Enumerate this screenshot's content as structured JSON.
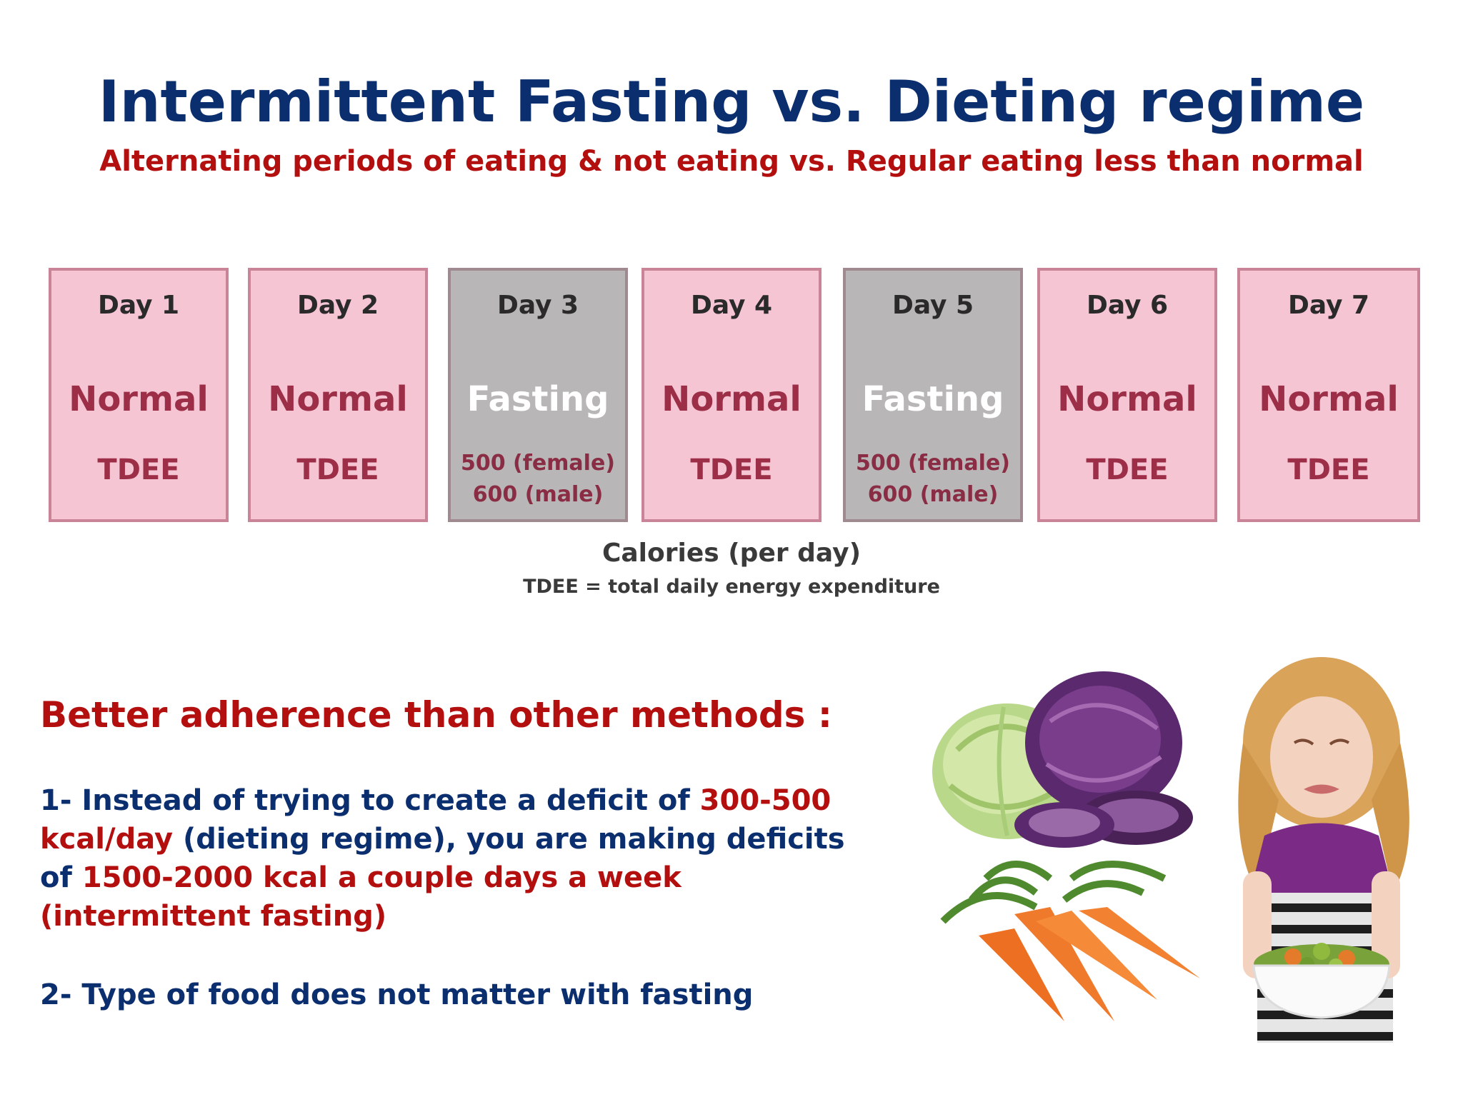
{
  "header": {
    "title": "Intermittent Fasting vs. Dieting regime",
    "subtitle": "Alternating periods of eating & not eating vs. Regular eating less than normal"
  },
  "days": [
    {
      "label": "Day 1",
      "type": "Normal",
      "calories": "TDEE"
    },
    {
      "label": "Day 2",
      "type": "Normal",
      "calories": "TDEE"
    },
    {
      "label": "Day 3",
      "type": "Fasting",
      "calories_line1": "500 (female)",
      "calories_line2": "600 (male)"
    },
    {
      "label": "Day 4",
      "type": "Normal",
      "calories": "TDEE"
    },
    {
      "label": "Day 5",
      "type": "Fasting",
      "calories_line1": "500 (female)",
      "calories_line2": "600 (male)"
    },
    {
      "label": "Day 6",
      "type": "Normal",
      "calories": "TDEE"
    },
    {
      "label": "Day 7",
      "type": "Normal",
      "calories": "TDEE"
    }
  ],
  "calories_caption": "Calories (per day)",
  "calories_note": "TDEE = total daily energy expenditure",
  "adherence": {
    "heading": "Better adherence than other methods :",
    "point1": {
      "part1": "1- Instead of trying to create a deficit of ",
      "part2": "300-500 kcal/day",
      "part3": " (dieting regime), you are making deficits of ",
      "part4": "1500-2000 kcal a couple days a week (intermittent fasting)"
    },
    "point2": "2- Type of food does not matter with fasting"
  },
  "images": {
    "vegetables": "vegetables-image",
    "child": "child-with-vegetables-image"
  },
  "colors": {
    "title_blue": "#0a2e6e",
    "accent_red": "#b30f0f",
    "normal_day_bg": "#f6c5d3",
    "fasting_day_bg": "#b8b6b7"
  }
}
